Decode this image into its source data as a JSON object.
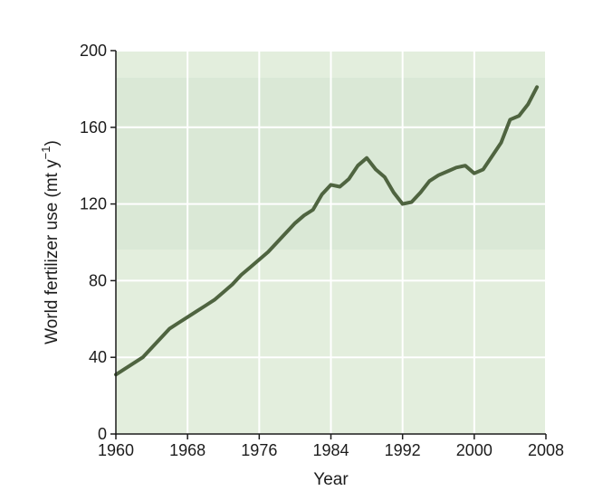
{
  "chart_data": {
    "type": "line",
    "title": "",
    "xlabel": "Year",
    "ylabel": "World fertilizer use (mt y",
    "ylabel_superscript": "−1",
    "ylabel_close": ")",
    "xlim": [
      1960,
      2008
    ],
    "ylim": [
      0,
      200
    ],
    "xticks": [
      1960,
      1968,
      1976,
      1984,
      1992,
      2000,
      2008
    ],
    "yticks": [
      0,
      40,
      80,
      120,
      160,
      200
    ],
    "grid": true,
    "legend": "none",
    "colors": {
      "plot_background": "#e3eedd",
      "band": "#d3e4d0",
      "grid": "#ffffff",
      "line": "#4f6440",
      "axis": "#1c1c1c"
    },
    "series": [
      {
        "name": "World fertilizer use",
        "x": [
          1960,
          1961,
          1962,
          1963,
          1964,
          1965,
          1966,
          1967,
          1968,
          1969,
          1970,
          1971,
          1972,
          1973,
          1974,
          1975,
          1976,
          1977,
          1978,
          1979,
          1980,
          1981,
          1982,
          1983,
          1984,
          1985,
          1986,
          1987,
          1988,
          1989,
          1990,
          1991,
          1992,
          1993,
          1994,
          1995,
          1996,
          1997,
          1998,
          1999,
          2000,
          2001,
          2002,
          2003,
          2004,
          2005,
          2006,
          2007
        ],
        "values": [
          31,
          34,
          37,
          40,
          45,
          50,
          55,
          58,
          61,
          64,
          67,
          70,
          74,
          78,
          83,
          87,
          91,
          95,
          100,
          105,
          110,
          114,
          117,
          125,
          130,
          129,
          133,
          140,
          144,
          138,
          134,
          126,
          120,
          121,
          126,
          132,
          135,
          137,
          139,
          140,
          136,
          138,
          145,
          152,
          164,
          166,
          172,
          181
        ]
      }
    ]
  }
}
